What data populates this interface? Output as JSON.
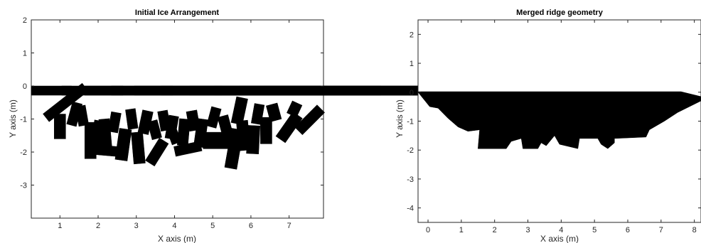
{
  "chart_data": [
    {
      "type": "scatter",
      "title": "Initial Ice Arrangement",
      "xlabel": "X axis (m)",
      "ylabel": "Y axis (m)",
      "xlim": [
        0.25,
        7.9
      ],
      "ylim": [
        -4.0,
        2.0
      ],
      "xticks": [
        1,
        2,
        3,
        4,
        5,
        6,
        7
      ],
      "yticks": [
        -3,
        -2,
        -1,
        0,
        1,
        2
      ],
      "grid": false,
      "series": [
        {
          "values": [
            [
              0.25,
              0.0,
              1.05,
              0.28,
              0
            ],
            [
              1.05,
              0.0,
              1.6,
              0.28,
              0
            ],
            [
              1.65,
              0.0,
              2.3,
              0.28,
              0
            ],
            [
              2.35,
              0.0,
              2.9,
              0.28,
              0
            ],
            [
              2.95,
              0.0,
              3.55,
              0.28,
              0
            ],
            [
              3.65,
              0.0,
              4.35,
              0.28,
              0
            ],
            [
              4.4,
              0.0,
              5.0,
              0.28,
              0
            ],
            [
              5.05,
              0.0,
              5.55,
              0.28,
              0
            ],
            [
              5.7,
              0.0,
              6.3,
              0.28,
              0
            ],
            [
              6.35,
              0.0,
              6.95,
              0.28,
              0
            ],
            [
              0.5,
              -0.35,
              1.3,
              0.3,
              -38
            ],
            [
              0.85,
              -0.85,
              0.3,
              0.75,
              0
            ],
            [
              1.25,
              -0.5,
              0.26,
              0.7,
              15
            ],
            [
              1.45,
              -0.6,
              0.26,
              0.6,
              -10
            ],
            [
              1.65,
              -1.1,
              0.3,
              1.1,
              0
            ],
            [
              1.85,
              -1.05,
              0.28,
              0.75,
              10
            ],
            [
              1.8,
              -1.8,
              0.7,
              0.3,
              5
            ],
            [
              2.05,
              -1.0,
              0.28,
              0.9,
              -5
            ],
            [
              2.3,
              -0.8,
              0.26,
              0.6,
              10
            ],
            [
              2.5,
              -1.3,
              0.32,
              0.95,
              8
            ],
            [
              2.75,
              -0.7,
              0.26,
              0.6,
              -8
            ],
            [
              2.9,
              -1.4,
              0.3,
              0.95,
              -5
            ],
            [
              3.1,
              -0.75,
              0.28,
              0.7,
              12
            ],
            [
              3.35,
              -1.05,
              0.26,
              0.55,
              -15
            ],
            [
              3.4,
              -1.6,
              0.28,
              0.8,
              32
            ],
            [
              3.6,
              -0.75,
              0.26,
              0.6,
              -10
            ],
            [
              3.8,
              -0.9,
              0.26,
              0.7,
              10
            ],
            [
              3.85,
              -1.2,
              0.25,
              0.55,
              -20
            ],
            [
              4.0,
              -1.75,
              0.7,
              0.3,
              -12
            ],
            [
              4.1,
              -1.0,
              0.28,
              0.8,
              5
            ],
            [
              4.35,
              -0.75,
              0.28,
              0.6,
              -10
            ],
            [
              4.55,
              -1.0,
              0.28,
              0.85,
              8
            ],
            [
              4.75,
              -1.4,
              0.7,
              0.5,
              0
            ],
            [
              4.9,
              -0.65,
              0.26,
              0.6,
              15
            ],
            [
              5.2,
              -0.9,
              0.28,
              0.7,
              -15
            ],
            [
              5.4,
              -1.3,
              0.32,
              1.2,
              10
            ],
            [
              5.55,
              -0.35,
              0.3,
              0.8,
              12
            ],
            [
              5.65,
              -1.05,
              0.3,
              0.9,
              -5
            ],
            [
              5.9,
              -1.2,
              0.32,
              0.85,
              3
            ],
            [
              6.05,
              -0.55,
              0.26,
              0.6,
              10
            ],
            [
              6.25,
              -0.95,
              0.3,
              0.8,
              0
            ],
            [
              6.45,
              -0.55,
              0.3,
              0.5,
              -15
            ],
            [
              6.85,
              -0.8,
              0.3,
              0.9,
              35
            ],
            [
              7.0,
              -0.5,
              0.28,
              0.4,
              25
            ],
            [
              7.4,
              -0.55,
              0.28,
              0.95,
              45
            ]
          ]
        }
      ]
    },
    {
      "type": "area",
      "title": "Merged ridge geometry",
      "xlabel": "X axis (m)",
      "ylabel": "Y axis (m)",
      "xlim": [
        -0.3,
        8.2
      ],
      "ylim": [
        -4.5,
        2.5
      ],
      "xticks": [
        0,
        1,
        2,
        3,
        4,
        5,
        6,
        7,
        8
      ],
      "yticks": [
        -4,
        -3,
        -2,
        -1,
        0,
        1,
        2
      ],
      "grid": false,
      "series": [
        {
          "outline": [
            [
              -0.3,
              0.02
            ],
            [
              7.6,
              0.02
            ],
            [
              8.2,
              -0.15
            ],
            [
              8.2,
              -0.3
            ],
            [
              7.5,
              -0.7
            ],
            [
              7.1,
              -1.0
            ],
            [
              6.65,
              -1.3
            ],
            [
              6.55,
              -1.55
            ],
            [
              5.6,
              -1.6
            ],
            [
              5.6,
              -1.75
            ],
            [
              5.4,
              -1.95
            ],
            [
              5.2,
              -1.8
            ],
            [
              5.1,
              -1.6
            ],
            [
              4.55,
              -1.6
            ],
            [
              4.5,
              -1.95
            ],
            [
              3.95,
              -1.8
            ],
            [
              3.8,
              -1.5
            ],
            [
              3.55,
              -1.85
            ],
            [
              3.4,
              -1.75
            ],
            [
              3.3,
              -1.95
            ],
            [
              2.85,
              -1.95
            ],
            [
              2.8,
              -1.6
            ],
            [
              2.5,
              -1.7
            ],
            [
              2.35,
              -1.95
            ],
            [
              1.5,
              -1.95
            ],
            [
              1.55,
              -1.3
            ],
            [
              1.2,
              -1.35
            ],
            [
              0.9,
              -1.2
            ],
            [
              0.6,
              -0.9
            ],
            [
              0.3,
              -0.55
            ],
            [
              0.05,
              -0.5
            ],
            [
              -0.3,
              0.0
            ]
          ]
        }
      ]
    }
  ]
}
